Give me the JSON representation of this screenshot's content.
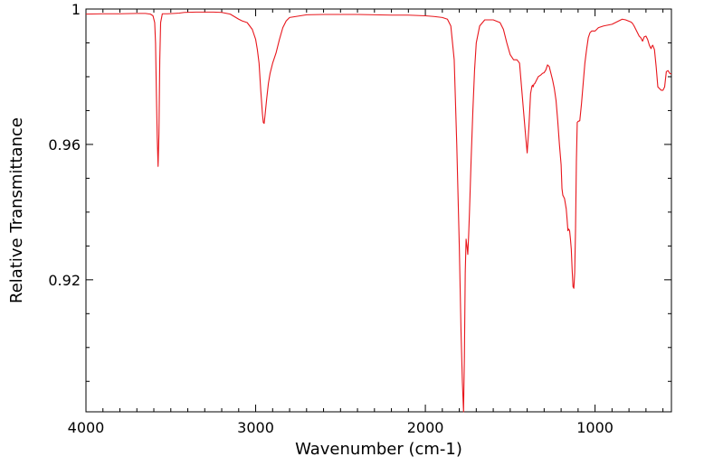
{
  "chart_data": {
    "type": "line",
    "title": "",
    "xlabel": "Wavenumber (cm-1)",
    "ylabel": "Relative Transmittance",
    "xlim": [
      4000,
      550
    ],
    "x_reversed": true,
    "ylim": [
      0.881,
      1.0
    ],
    "x_ticks": [
      4000,
      3000,
      2000,
      1000
    ],
    "x_tick_labels": [
      "4000",
      "3000",
      "2000",
      "1000"
    ],
    "y_ticks": [
      1.0,
      0.96,
      0.92
    ],
    "y_tick_labels": [
      "1",
      "0.96",
      "0.92"
    ],
    "grid": false,
    "legend": "none",
    "series": [
      {
        "color": "#e8161c",
        "x": [
          4000,
          3900,
          3800,
          3700,
          3650,
          3620,
          3605,
          3595,
          3590,
          3585,
          3580,
          3575,
          3570,
          3565,
          3560,
          3550,
          3520,
          3480,
          3450,
          3420,
          3350,
          3250,
          3200,
          3150,
          3100,
          3080,
          3050,
          3020,
          3000,
          2990,
          2980,
          2970,
          2960,
          2955,
          2950,
          2945,
          2935,
          2925,
          2915,
          2900,
          2880,
          2860,
          2840,
          2820,
          2800,
          2700,
          2600,
          2500,
          2400,
          2300,
          2200,
          2100,
          2000,
          1950,
          1900,
          1870,
          1850,
          1830,
          1815,
          1800,
          1790,
          1782,
          1775,
          1770,
          1765,
          1760,
          1755,
          1750,
          1745,
          1740,
          1735,
          1730,
          1720,
          1710,
          1700,
          1680,
          1650,
          1600,
          1560,
          1540,
          1520,
          1500,
          1480,
          1460,
          1445,
          1430,
          1410,
          1400,
          1390,
          1380,
          1372,
          1368,
          1365,
          1360,
          1355,
          1345,
          1335,
          1320,
          1310,
          1300,
          1290,
          1280,
          1270,
          1260,
          1250,
          1240,
          1230,
          1220,
          1210,
          1200,
          1195,
          1190,
          1180,
          1170,
          1165,
          1160,
          1155,
          1150,
          1145,
          1140,
          1135,
          1130,
          1125,
          1120,
          1115,
          1110,
          1105,
          1100,
          1090,
          1080,
          1070,
          1060,
          1050,
          1040,
          1030,
          1020,
          1000,
          980,
          950,
          900,
          880,
          860,
          840,
          820,
          800,
          790,
          780,
          770,
          760,
          750,
          740,
          730,
          720,
          710,
          700,
          690,
          680,
          670,
          665,
          660,
          650,
          640,
          630,
          620,
          610,
          600,
          590,
          580,
          570,
          560,
          550
        ],
        "y": [
          0.9985,
          0.9986,
          0.9986,
          0.9987,
          0.9987,
          0.9985,
          0.998,
          0.996,
          0.99,
          0.975,
          0.962,
          0.9535,
          0.963,
          0.985,
          0.996,
          0.9986,
          0.9986,
          0.9987,
          0.9988,
          0.999,
          0.9991,
          0.9991,
          0.999,
          0.9985,
          0.997,
          0.9965,
          0.996,
          0.994,
          0.991,
          0.988,
          0.984,
          0.976,
          0.969,
          0.9665,
          0.9662,
          0.9685,
          0.9735,
          0.978,
          0.981,
          0.984,
          0.987,
          0.991,
          0.9945,
          0.9965,
          0.9975,
          0.9983,
          0.9984,
          0.9984,
          0.9984,
          0.9983,
          0.9982,
          0.9982,
          0.998,
          0.9978,
          0.9975,
          0.997,
          0.995,
          0.985,
          0.96,
          0.93,
          0.905,
          0.89,
          0.881,
          0.897,
          0.922,
          0.932,
          0.93,
          0.9275,
          0.933,
          0.94,
          0.948,
          0.956,
          0.97,
          0.982,
          0.99,
          0.995,
          0.9968,
          0.9968,
          0.996,
          0.994,
          0.99,
          0.9865,
          0.985,
          0.985,
          0.984,
          0.975,
          0.963,
          0.9575,
          0.965,
          0.975,
          0.9772,
          0.9775,
          0.977,
          0.9778,
          0.978,
          0.979,
          0.98,
          0.9805,
          0.981,
          0.9812,
          0.982,
          0.9835,
          0.983,
          0.981,
          0.979,
          0.9765,
          0.973,
          0.967,
          0.96,
          0.954,
          0.947,
          0.945,
          0.944,
          0.941,
          0.938,
          0.9345,
          0.935,
          0.9345,
          0.932,
          0.929,
          0.923,
          0.918,
          0.9175,
          0.922,
          0.935,
          0.955,
          0.9665,
          0.9668,
          0.967,
          0.972,
          0.978,
          0.984,
          0.988,
          0.9915,
          0.993,
          0.9935,
          0.9935,
          0.9945,
          0.995,
          0.9955,
          0.996,
          0.9965,
          0.997,
          0.9968,
          0.9964,
          0.9962,
          0.9958,
          0.995,
          0.994,
          0.993,
          0.992,
          0.9915,
          0.9905,
          0.9918,
          0.992,
          0.991,
          0.9893,
          0.9883,
          0.989,
          0.9893,
          0.988,
          0.983,
          0.977,
          0.9765,
          0.976,
          0.976,
          0.977,
          0.9815,
          0.9818,
          0.981,
          0.9808
        ]
      }
    ]
  }
}
